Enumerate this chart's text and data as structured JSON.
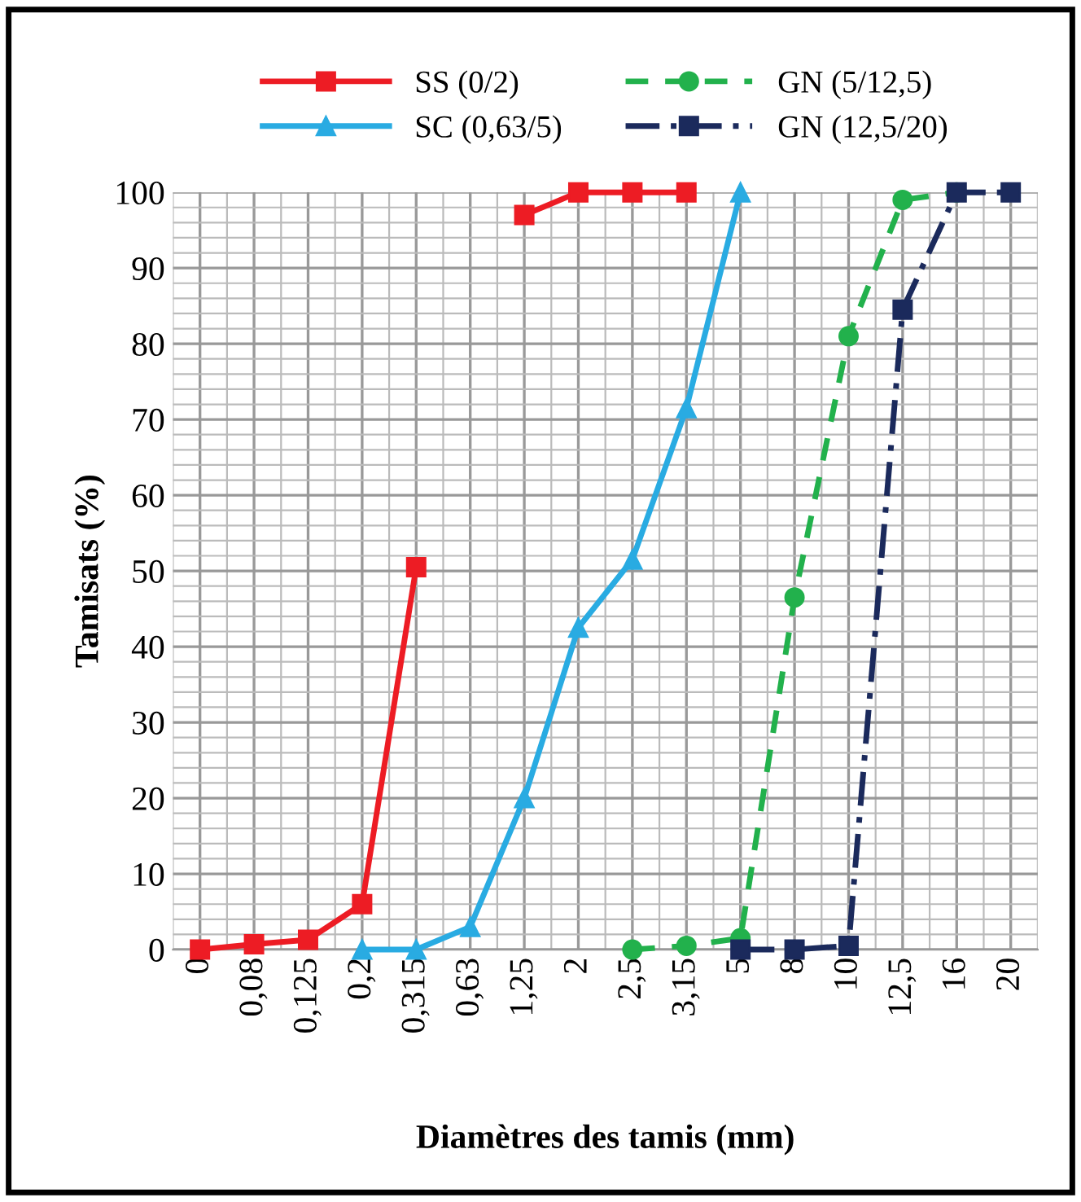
{
  "chart_data": {
    "type": "line",
    "xlabel": "Diamètres des tamis (mm)",
    "ylabel": "Tamisats (%)",
    "categories": [
      "0",
      "0,08",
      "0,125",
      "0,2",
      "0,315",
      "0,63",
      "1,25",
      "2",
      "2,5",
      "3,15",
      "5",
      "8",
      "10",
      "12,5",
      "16",
      "20"
    ],
    "series": [
      {
        "name": "SS (0/2)",
        "color": "#ed1c24",
        "marker": "square",
        "line_style": "solid",
        "values": [
          0,
          0.7,
          1.3,
          6,
          50.5,
          null,
          97,
          100,
          100,
          100,
          null,
          null,
          null,
          null,
          null,
          null
        ]
      },
      {
        "name": "SC (0,63/5)",
        "color": "#29abe2",
        "marker": "triangle",
        "line_style": "solid",
        "values": [
          null,
          null,
          null,
          0,
          0,
          3,
          20,
          42.5,
          51.5,
          71.5,
          100,
          null,
          null,
          null,
          null,
          null
        ]
      },
      {
        "name": "GN (5/12,5)",
        "color": "#22b14c",
        "marker": "circle",
        "line_style": "dashed",
        "values": [
          null,
          null,
          null,
          null,
          null,
          null,
          null,
          null,
          0,
          0.5,
          1.5,
          46.5,
          81,
          99,
          100,
          null
        ]
      },
      {
        "name": "GN (12,5/20)",
        "color": "#1b2a5c",
        "marker": "square",
        "line_style": "dashdot",
        "values": [
          null,
          null,
          null,
          null,
          null,
          null,
          null,
          null,
          null,
          null,
          0,
          0,
          0.5,
          84.5,
          100,
          100
        ]
      }
    ],
    "ylim": [
      0,
      100
    ],
    "yticks": [
      0,
      10,
      20,
      30,
      40,
      50,
      60,
      70,
      80,
      90,
      100
    ],
    "grid": true,
    "legend": "top"
  }
}
